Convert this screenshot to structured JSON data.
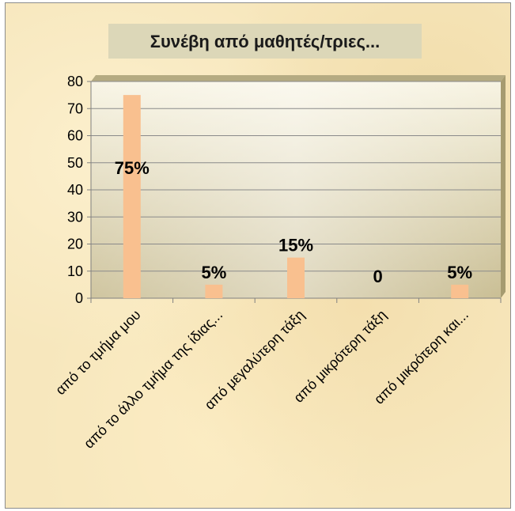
{
  "chart_data": {
    "type": "bar",
    "title": "Συνέβη από μαθητές/τριες...",
    "categories": [
      "από το τμήμα μου",
      "από το άλλο τμήμα της ίδιας...",
      "από μεγαλύτερη τάξη",
      "από μικρότερη τάξη",
      "από μικρότερη και..."
    ],
    "values": [
      75,
      5,
      15,
      0,
      5
    ],
    "data_labels": [
      "75%",
      "5%",
      "15%",
      "0",
      "5%"
    ],
    "yticks": [
      "0",
      "10",
      "20",
      "30",
      "40",
      "50",
      "60",
      "70",
      "80"
    ],
    "ylim": [
      0,
      80
    ],
    "xlabel": "",
    "ylabel": "",
    "grid": true,
    "legend": "none",
    "colors": {
      "bar": "#f9c08f",
      "plot_bg_light": "#f7f3e1",
      "plot_bg_dark": "#c7bb8f",
      "gridline": "#8a8a8a",
      "title_box": "#dcd7b8"
    }
  }
}
